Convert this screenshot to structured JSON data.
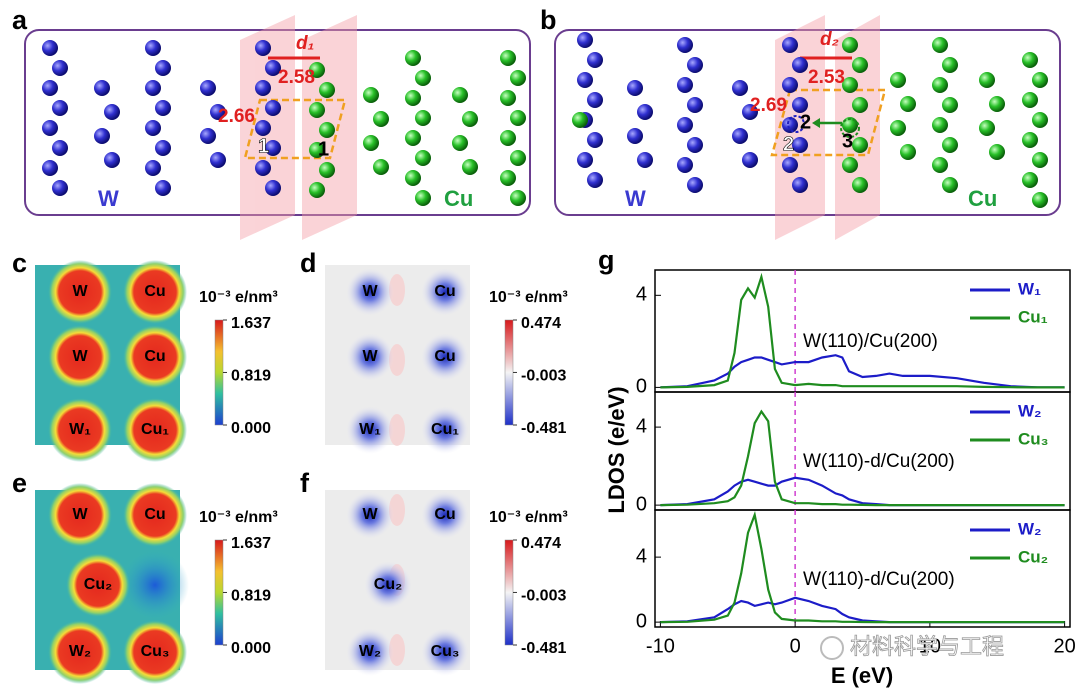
{
  "panels": {
    "a": {
      "letter": "a",
      "left": "W",
      "right": "Cu",
      "d": "d₁",
      "d_value": 2.58,
      "gap": 2.66,
      "sites": [
        "1",
        "1"
      ]
    },
    "b": {
      "letter": "b",
      "left": "W",
      "right": "Cu",
      "d": "d₂",
      "d_value": 2.53,
      "gap": 2.69,
      "sites": [
        "2",
        "2",
        "3"
      ]
    },
    "c": {
      "letter": "c",
      "atoms": [
        "W",
        "Cu",
        "W",
        "Cu",
        "W₁",
        "Cu₁"
      ],
      "colorbar": {
        "title": "10⁻³ e/nm³",
        "ticks": [
          1.637,
          0.819,
          {
            "value": 0,
            "label": "0.000"
          }
        ]
      }
    },
    "d": {
      "letter": "d",
      "atoms": [
        "W",
        "Cu",
        "W",
        "Cu",
        "W₁",
        "Cu₁"
      ],
      "colorbar": {
        "title": "10⁻³ e/nm³",
        "ticks": [
          0.474,
          -0.003,
          -0.481
        ]
      }
    },
    "e": {
      "letter": "e",
      "atoms": [
        "W",
        "Cu",
        "Cu₂",
        "W₂",
        "Cu₃"
      ],
      "colorbar": {
        "title": "10⁻³ e/nm³",
        "ticks": [
          1.637,
          0.819,
          {
            "value": 0,
            "label": "0.000"
          }
        ]
      }
    },
    "f": {
      "letter": "f",
      "atoms": [
        "W",
        "Cu",
        "Cu₂",
        "W₂",
        "Cu₃"
      ],
      "colorbar": {
        "title": "10⁻³ e/nm³",
        "ticks": [
          0.474,
          -0.003,
          -0.481
        ]
      }
    },
    "g": {
      "letter": "g"
    }
  },
  "chart_data": [
    {
      "type": "line",
      "annotation": "W(110)/Cu(200)",
      "ylabel": "LDOS (e/eV)",
      "x": [
        -10,
        -8,
        -6,
        -5,
        -4.5,
        -4,
        -3.5,
        -3,
        -2.5,
        -2,
        -1.5,
        -1,
        0,
        1,
        2,
        3,
        3.5,
        4,
        5,
        6,
        7,
        8,
        10,
        12,
        14,
        16,
        18,
        20
      ],
      "series": [
        {
          "name": "W₁",
          "color": "#1c1cc8",
          "values": [
            0,
            0.05,
            0.3,
            0.6,
            0.9,
            1.1,
            1.2,
            1.3,
            1.3,
            1.2,
            1.1,
            1.0,
            1.1,
            1.1,
            1.3,
            1.4,
            1.3,
            0.7,
            0.45,
            0.5,
            0.6,
            0.5,
            0.5,
            0.4,
            0.2,
            0.05,
            0,
            0
          ]
        },
        {
          "name": "Cu₁",
          "color": "#1f8c1f",
          "values": [
            0,
            0.02,
            0.1,
            0.3,
            1.5,
            3.8,
            4.3,
            3.9,
            4.8,
            3.5,
            0.8,
            0.2,
            0.1,
            0.15,
            0.1,
            0.1,
            0.05,
            0.05,
            0.05,
            0.05,
            0.05,
            0.05,
            0.05,
            0.05,
            0.02,
            0.01,
            0,
            0
          ]
        }
      ],
      "xlim": [
        -10.4,
        20.4
      ],
      "ylim": [
        -0.2,
        5.1
      ],
      "yticks": [
        0,
        4
      ],
      "vline": 0
    },
    {
      "type": "line",
      "annotation": "W(110)-d/Cu(200)",
      "x": [
        -10,
        -8,
        -6,
        -5,
        -4.5,
        -4,
        -3.5,
        -3,
        -2.5,
        -2,
        -1.5,
        -1,
        0,
        1,
        2,
        3,
        3.5,
        4,
        5,
        6,
        7,
        8,
        10,
        12,
        14,
        16,
        18,
        20
      ],
      "series": [
        {
          "name": "W₂",
          "color": "#1c1cc8",
          "values": [
            0,
            0.05,
            0.3,
            0.7,
            1.0,
            1.2,
            1.3,
            1.2,
            1.1,
            1.0,
            1.0,
            1.2,
            1.4,
            1.3,
            1.0,
            0.6,
            0.5,
            0.3,
            0.1,
            0.05,
            0,
            0,
            0,
            0,
            0,
            0,
            0,
            0
          ]
        },
        {
          "name": "Cu₃",
          "color": "#1f8c1f",
          "values": [
            0,
            0.02,
            0.1,
            0.2,
            0.4,
            1,
            2.5,
            4.2,
            4.8,
            4.3,
            1.2,
            0.3,
            0.1,
            0.1,
            0.05,
            0.05,
            0.02,
            0.02,
            0.01,
            0,
            0,
            0,
            0,
            0,
            0,
            0,
            0,
            0
          ]
        }
      ],
      "xlim": [
        -10.4,
        20.4
      ],
      "ylim": [
        -0.25,
        5.8
      ],
      "yticks": [
        0,
        4
      ],
      "vline": 0
    },
    {
      "type": "line",
      "annotation": "W(110)-d/Cu(200)",
      "xlabel": "E (eV)",
      "x": [
        -10,
        -8,
        -6,
        -5,
        -4.5,
        -4,
        -3.5,
        -3,
        -2.5,
        -2,
        -1.5,
        -1,
        0,
        1,
        2,
        3,
        3.5,
        4,
        5,
        6,
        7,
        8,
        10,
        12,
        14,
        16,
        18,
        20
      ],
      "series": [
        {
          "name": "W₂",
          "color": "#1c1cc8",
          "values": [
            0,
            0.05,
            0.3,
            0.8,
            1.1,
            1.3,
            1.2,
            1.0,
            1.1,
            1.2,
            1.1,
            1.2,
            1.5,
            1.3,
            1.0,
            0.8,
            0.5,
            0.3,
            0.1,
            0.05,
            0,
            0,
            0,
            0,
            0,
            0,
            0,
            0
          ]
        },
        {
          "name": "Cu₂",
          "color": "#1f8c1f",
          "values": [
            0,
            0.02,
            0.15,
            0.4,
            1.2,
            3,
            5.5,
            6.6,
            4.5,
            2,
            0.6,
            0.2,
            0.1,
            0.1,
            0.05,
            0.05,
            0.02,
            0.02,
            0.01,
            0,
            0,
            0,
            0,
            0,
            0,
            0,
            0,
            0
          ]
        }
      ],
      "xlim": [
        -10.4,
        20.4
      ],
      "ylim": [
        -0.3,
        6.9
      ],
      "yticks": [
        0,
        4
      ],
      "xticks": [
        -10,
        0,
        10,
        20
      ],
      "vline": 0
    }
  ],
  "watermark": "材料科学与工程"
}
